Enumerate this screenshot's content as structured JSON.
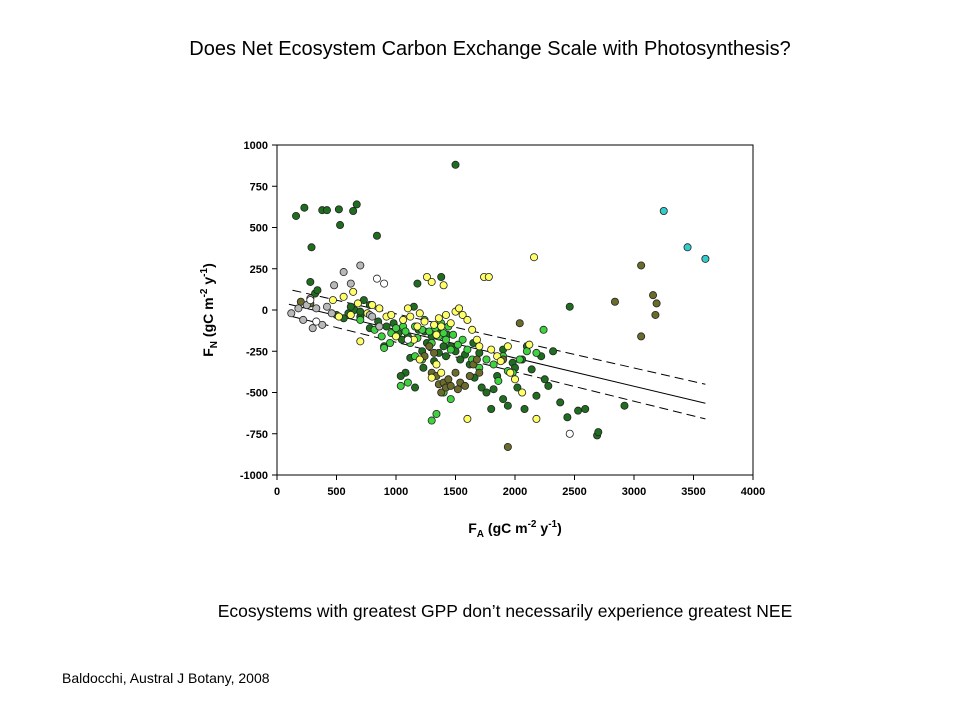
{
  "slide": {
    "title": "Does Net Ecosystem Carbon Exchange Scale with Photosynthesis?",
    "caption": "Ecosystems with greatest GPP don’t necessarily experience greatest NEE",
    "citation": "Baldocchi, Austral J Botany, 2008"
  },
  "chart_data": {
    "type": "scatter",
    "title": "",
    "xlabel": {
      "main": "F",
      "sub": "A",
      "rest1": " (gC m",
      "sup1": "-2",
      "rest2": " y",
      "sup2": "-1",
      "rest3": ")"
    },
    "ylabel": {
      "main": "F",
      "sub": "N",
      "rest1": " (gC m",
      "sup1": "-2",
      "rest2": " y",
      "sup2": "-1",
      "rest3": ")"
    },
    "xlim": [
      0,
      4000
    ],
    "ylim": [
      -1000,
      1000
    ],
    "xticks": [
      0,
      500,
      1000,
      1500,
      2000,
      2500,
      3000,
      3500,
      4000
    ],
    "yticks": [
      -1000,
      -750,
      -500,
      -250,
      0,
      250,
      500,
      750,
      1000
    ],
    "grid": false,
    "legend": "none",
    "regression": {
      "fit": [
        [
          100,
          35
        ],
        [
          3600,
          -565
        ]
      ],
      "upper_ci": [
        [
          130,
          120
        ],
        [
          3600,
          -450
        ]
      ],
      "lower_ci": [
        [
          130,
          -40
        ],
        [
          3600,
          -660
        ]
      ]
    },
    "series": [
      {
        "color": "#1f6e1f",
        "points": [
          [
            160,
            570
          ],
          [
            230,
            620
          ],
          [
            290,
            380
          ],
          [
            380,
            605
          ],
          [
            420,
            605
          ],
          [
            520,
            610
          ],
          [
            530,
            515
          ],
          [
            640,
            600
          ],
          [
            670,
            640
          ],
          [
            840,
            450
          ],
          [
            1500,
            880
          ],
          [
            280,
            170
          ],
          [
            320,
            100
          ],
          [
            340,
            120
          ],
          [
            600,
            -20
          ],
          [
            650,
            0
          ],
          [
            700,
            -40
          ],
          [
            730,
            60
          ],
          [
            780,
            30
          ],
          [
            850,
            -70
          ],
          [
            920,
            -100
          ],
          [
            980,
            -80
          ],
          [
            1020,
            -140
          ],
          [
            1050,
            -180
          ],
          [
            1100,
            -160
          ],
          [
            1150,
            20
          ],
          [
            1180,
            160
          ],
          [
            1190,
            -120
          ],
          [
            1220,
            -250
          ],
          [
            1260,
            -200
          ],
          [
            1300,
            -160
          ],
          [
            1350,
            -140
          ],
          [
            1380,
            200
          ],
          [
            1400,
            -220
          ],
          [
            1420,
            -280
          ],
          [
            1460,
            -220
          ],
          [
            1500,
            -250
          ],
          [
            1540,
            -300
          ],
          [
            1580,
            -270
          ],
          [
            1620,
            -330
          ],
          [
            1660,
            -410
          ],
          [
            1700,
            -260
          ],
          [
            1720,
            -470
          ],
          [
            1760,
            -500
          ],
          [
            1800,
            -600
          ],
          [
            1820,
            -480
          ],
          [
            1850,
            -400
          ],
          [
            1900,
            -540
          ],
          [
            1940,
            -580
          ],
          [
            1980,
            -320
          ],
          [
            2020,
            -470
          ],
          [
            2060,
            -300
          ],
          [
            2080,
            -600
          ],
          [
            2100,
            -220
          ],
          [
            2140,
            -360
          ],
          [
            2180,
            -520
          ],
          [
            2220,
            -280
          ],
          [
            2250,
            -420
          ],
          [
            2280,
            -460
          ],
          [
            2320,
            -250
          ],
          [
            2380,
            -560
          ],
          [
            2460,
            20
          ],
          [
            2440,
            -650
          ],
          [
            2530,
            -610
          ],
          [
            2590,
            -600
          ],
          [
            2690,
            -760
          ],
          [
            2700,
            -740
          ],
          [
            2920,
            -580
          ],
          [
            1900,
            -240
          ],
          [
            2000,
            -350
          ],
          [
            1650,
            -200
          ],
          [
            1120,
            -290
          ],
          [
            1080,
            -380
          ],
          [
            900,
            -220
          ],
          [
            1040,
            -400
          ],
          [
            1160,
            -470
          ],
          [
            1230,
            -350
          ],
          [
            1320,
            -310
          ],
          [
            1360,
            -260
          ],
          [
            1240,
            -130
          ],
          [
            780,
            -110
          ],
          [
            700,
            -10
          ],
          [
            620,
            20
          ],
          [
            560,
            -50
          ],
          [
            500,
            -30
          ],
          [
            1430,
            -150
          ]
        ]
      },
      {
        "color": "#3fd23f",
        "points": [
          [
            700,
            -60
          ],
          [
            820,
            -120
          ],
          [
            880,
            -160
          ],
          [
            960,
            -140
          ],
          [
            1000,
            -110
          ],
          [
            1060,
            -100
          ],
          [
            1080,
            -130
          ],
          [
            1120,
            -200
          ],
          [
            1160,
            -100
          ],
          [
            1180,
            -170
          ],
          [
            1220,
            -120
          ],
          [
            1240,
            -60
          ],
          [
            1280,
            -130
          ],
          [
            1300,
            -200
          ],
          [
            1330,
            -110
          ],
          [
            1360,
            -160
          ],
          [
            1380,
            -80
          ],
          [
            1400,
            -140
          ],
          [
            1420,
            -180
          ],
          [
            1440,
            -100
          ],
          [
            1460,
            -240
          ],
          [
            1480,
            -150
          ],
          [
            1520,
            -210
          ],
          [
            1560,
            -180
          ],
          [
            1600,
            -240
          ],
          [
            1640,
            -300
          ],
          [
            1700,
            -350
          ],
          [
            1760,
            -300
          ],
          [
            1820,
            -330
          ],
          [
            1860,
            -430
          ],
          [
            1900,
            -280
          ],
          [
            1940,
            -370
          ],
          [
            1980,
            -380
          ],
          [
            2040,
            -300
          ],
          [
            2100,
            -250
          ],
          [
            2180,
            -260
          ],
          [
            2240,
            -120
          ],
          [
            1300,
            -670
          ],
          [
            1340,
            -630
          ],
          [
            1400,
            -500
          ],
          [
            1460,
            -540
          ],
          [
            1040,
            -460
          ],
          [
            1100,
            -440
          ],
          [
            1220,
            -300
          ],
          [
            1160,
            -280
          ],
          [
            900,
            -230
          ],
          [
            950,
            -200
          ]
        ]
      },
      {
        "color": "#6b6b2b",
        "points": [
          [
            200,
            50
          ],
          [
            280,
            40
          ],
          [
            1300,
            -380
          ],
          [
            1340,
            -400
          ],
          [
            1360,
            -450
          ],
          [
            1380,
            -500
          ],
          [
            1400,
            -440
          ],
          [
            1420,
            -470
          ],
          [
            1440,
            -420
          ],
          [
            1460,
            -460
          ],
          [
            1500,
            -380
          ],
          [
            1520,
            -480
          ],
          [
            1540,
            -440
          ],
          [
            1580,
            -460
          ],
          [
            1620,
            -400
          ],
          [
            1650,
            -330
          ],
          [
            1680,
            -300
          ],
          [
            1700,
            -380
          ],
          [
            1900,
            -300
          ],
          [
            1940,
            -830
          ],
          [
            2040,
            -80
          ],
          [
            2840,
            50
          ],
          [
            3060,
            270
          ],
          [
            3060,
            -160
          ],
          [
            3160,
            90
          ],
          [
            3180,
            -30
          ],
          [
            3190,
            40
          ],
          [
            1280,
            -220
          ],
          [
            1320,
            -260
          ],
          [
            1240,
            -280
          ]
        ]
      },
      {
        "color": "#ffff66",
        "points": [
          [
            470,
            60
          ],
          [
            520,
            -40
          ],
          [
            560,
            80
          ],
          [
            620,
            -30
          ],
          [
            640,
            110
          ],
          [
            680,
            40
          ],
          [
            700,
            -190
          ],
          [
            760,
            -20
          ],
          [
            800,
            30
          ],
          [
            860,
            10
          ],
          [
            920,
            -40
          ],
          [
            960,
            -30
          ],
          [
            1000,
            -160
          ],
          [
            1060,
            -60
          ],
          [
            1100,
            10
          ],
          [
            1120,
            -40
          ],
          [
            1150,
            -180
          ],
          [
            1180,
            -100
          ],
          [
            1200,
            -20
          ],
          [
            1240,
            -70
          ],
          [
            1260,
            200
          ],
          [
            1300,
            170
          ],
          [
            1320,
            -90
          ],
          [
            1340,
            -150
          ],
          [
            1360,
            -50
          ],
          [
            1380,
            -100
          ],
          [
            1400,
            150
          ],
          [
            1420,
            -30
          ],
          [
            1460,
            -80
          ],
          [
            1500,
            -10
          ],
          [
            1530,
            10
          ],
          [
            1560,
            -30
          ],
          [
            1600,
            -60
          ],
          [
            1640,
            -120
          ],
          [
            1680,
            -180
          ],
          [
            1700,
            -220
          ],
          [
            1740,
            200
          ],
          [
            1780,
            200
          ],
          [
            1800,
            -240
          ],
          [
            1850,
            -280
          ],
          [
            1880,
            -310
          ],
          [
            1940,
            -220
          ],
          [
            1960,
            -380
          ],
          [
            2000,
            -420
          ],
          [
            2060,
            -500
          ],
          [
            2120,
            -210
          ],
          [
            2160,
            320
          ],
          [
            2180,
            -660
          ],
          [
            1600,
            -660
          ],
          [
            1380,
            -380
          ],
          [
            1340,
            -330
          ],
          [
            1300,
            -410
          ],
          [
            1200,
            -300
          ]
        ]
      },
      {
        "color": "#b8b8b8",
        "points": [
          [
            120,
            -20
          ],
          [
            180,
            10
          ],
          [
            220,
            -60
          ],
          [
            250,
            30
          ],
          [
            280,
            70
          ],
          [
            300,
            -110
          ],
          [
            330,
            10
          ],
          [
            380,
            -90
          ],
          [
            420,
            20
          ],
          [
            460,
            -20
          ],
          [
            480,
            150
          ],
          [
            560,
            230
          ],
          [
            620,
            160
          ],
          [
            700,
            270
          ],
          [
            780,
            -30
          ],
          [
            800,
            -40
          ],
          [
            860,
            -100
          ]
        ]
      },
      {
        "color": "#ffffff",
        "points": [
          [
            280,
            60
          ],
          [
            330,
            -70
          ],
          [
            840,
            190
          ],
          [
            900,
            160
          ],
          [
            1100,
            -180
          ],
          [
            2460,
            -750
          ]
        ]
      },
      {
        "color": "#33cccc",
        "points": [
          [
            3250,
            600
          ],
          [
            3450,
            380
          ],
          [
            3600,
            310
          ]
        ]
      }
    ]
  }
}
